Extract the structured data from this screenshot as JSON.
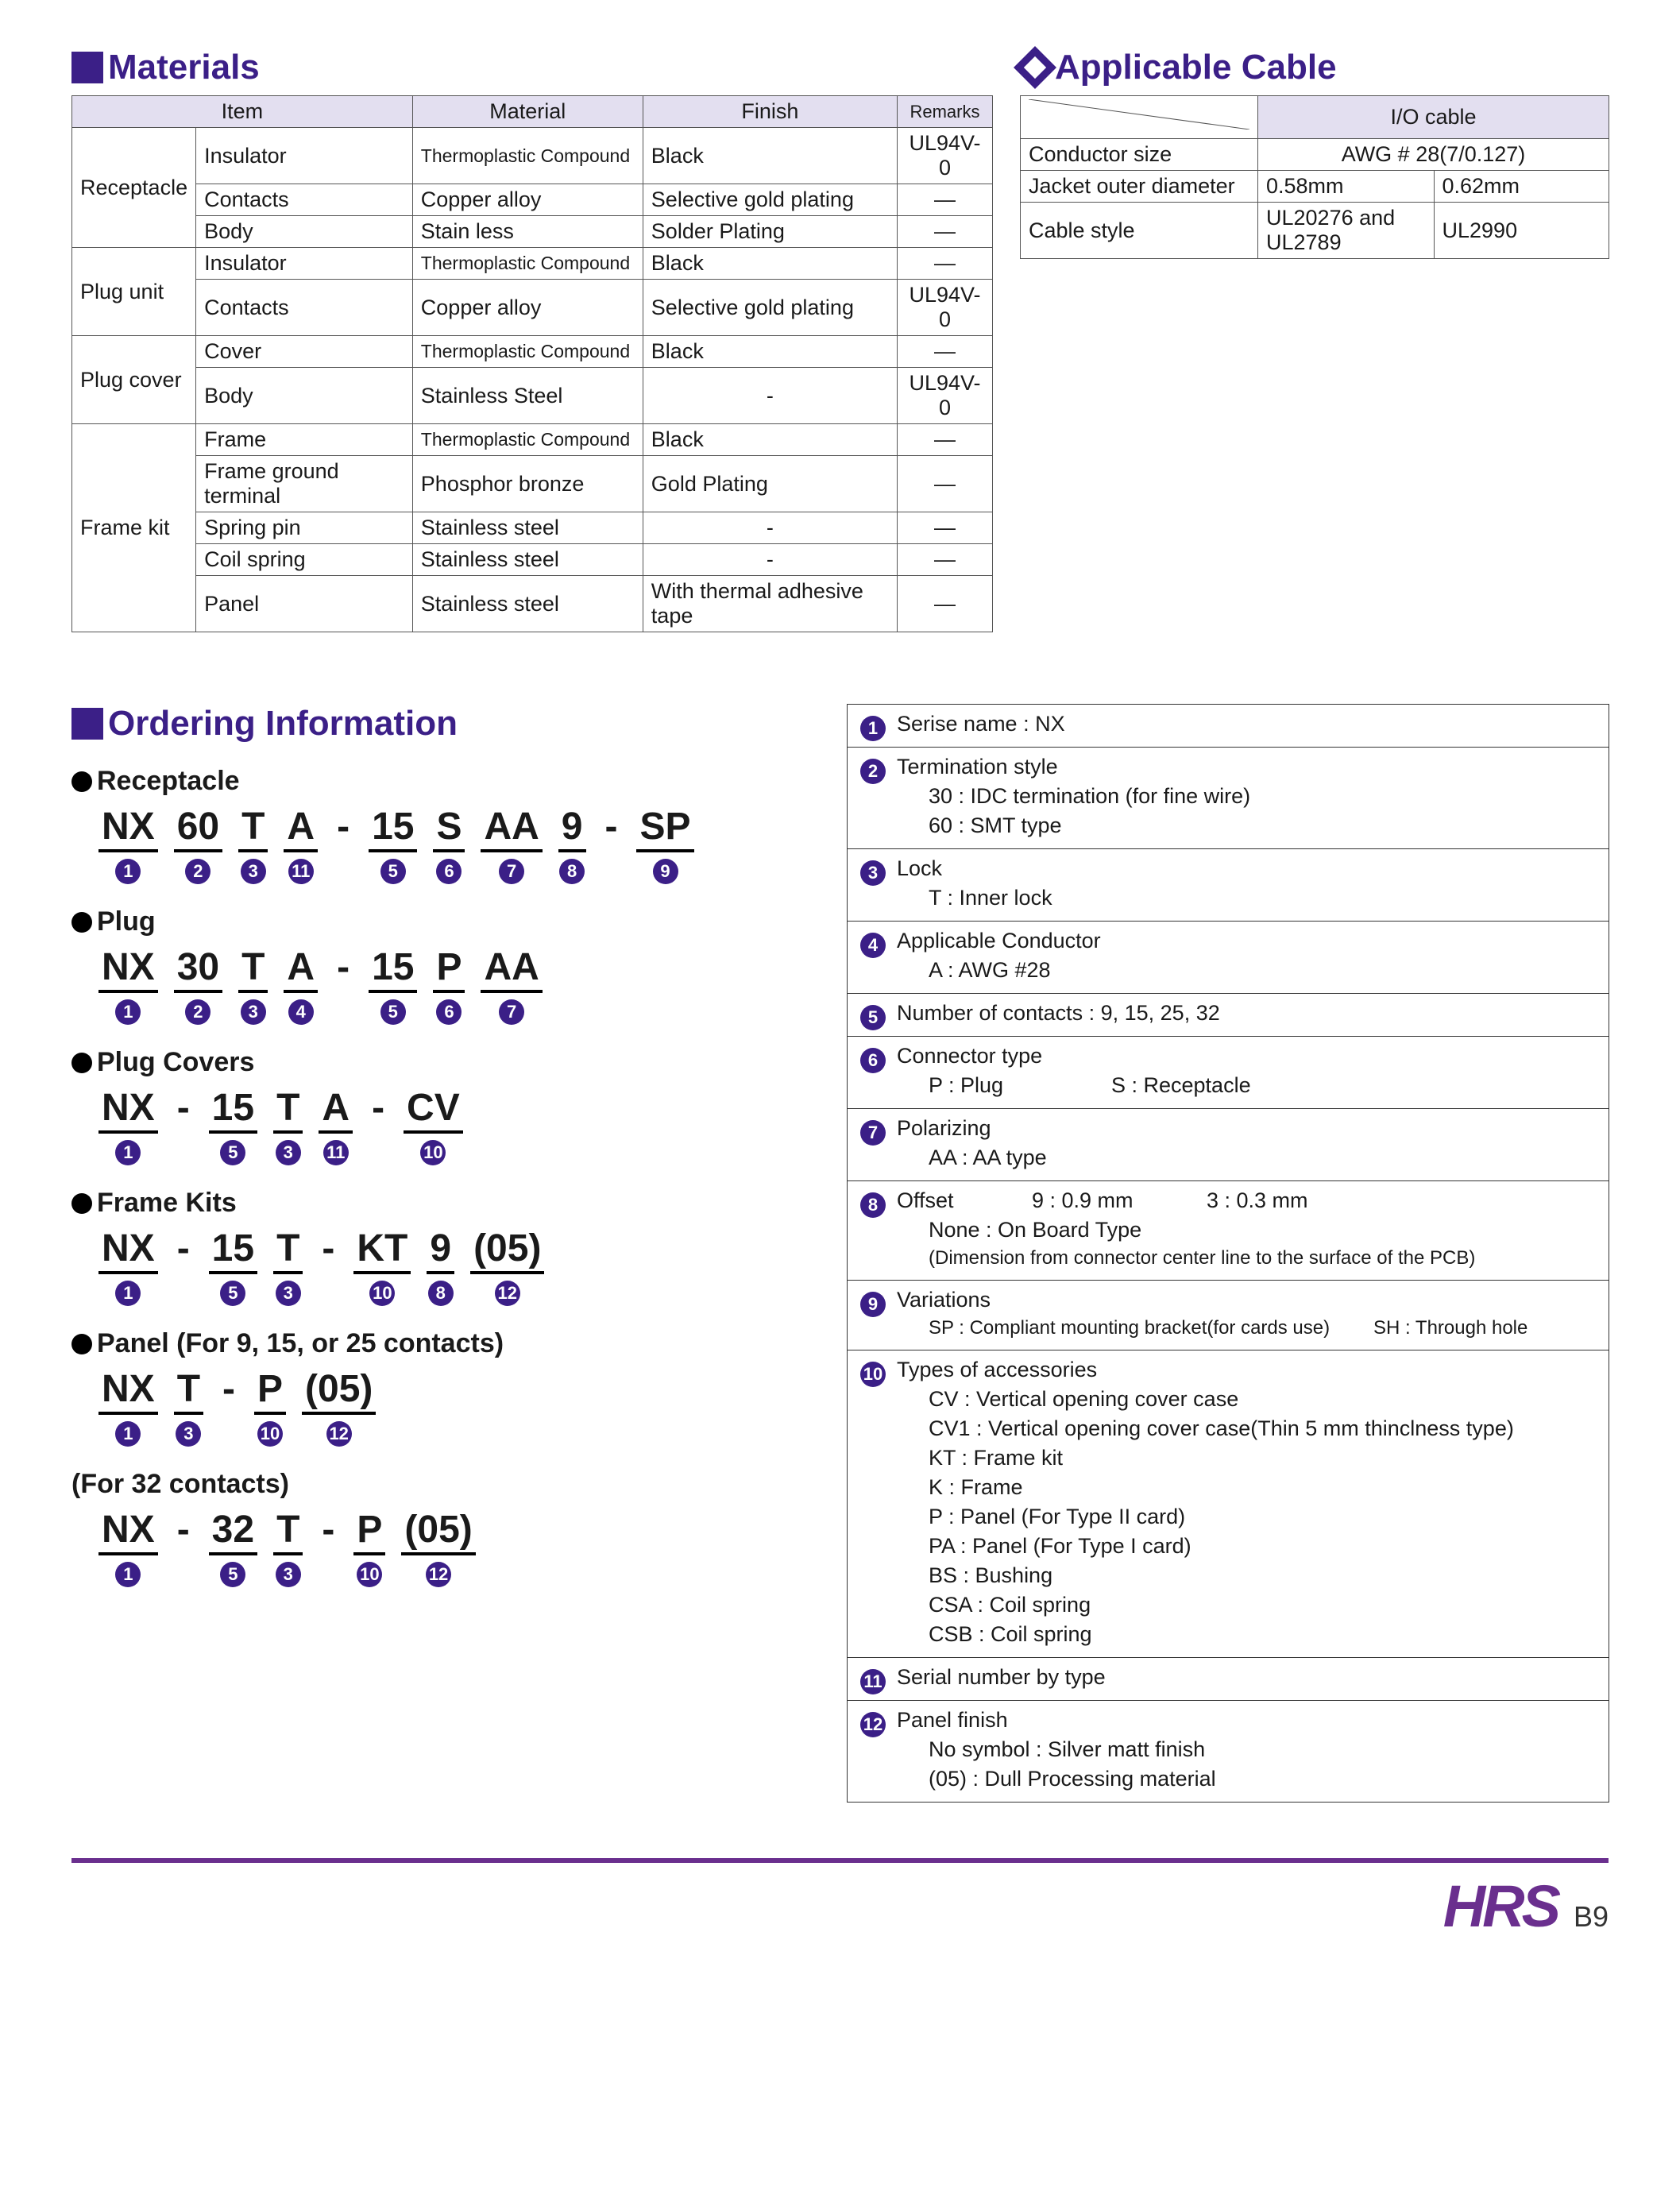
{
  "colors": {
    "accent": "#3b1f87",
    "border": "#555555",
    "header_bg": "#e3dff0",
    "footer_rule": "#6a2f8e",
    "logo": "#6a2f8e"
  },
  "sections": {
    "materials": {
      "title": "Materials"
    },
    "cable": {
      "title": "Applicable Cable"
    },
    "ordering": {
      "title": "Ordering Information"
    }
  },
  "materials_table": {
    "headers": [
      "Item",
      "Material",
      "Finish",
      "Remarks"
    ],
    "groups": [
      {
        "group": "Receptacle",
        "rows": [
          {
            "item": "Insulator",
            "material": "Thermoplastic Compound",
            "finish": "Black",
            "remarks": "UL94V-0"
          },
          {
            "item": "Contacts",
            "material": "Copper alloy",
            "finish": "Selective gold plating",
            "remarks": "—"
          },
          {
            "item": "Body",
            "material": "Stain less",
            "finish": "Solder Plating",
            "remarks": "—"
          }
        ]
      },
      {
        "group": "Plug unit",
        "rows": [
          {
            "item": "Insulator",
            "material": "Thermoplastic Compound",
            "finish": "Black",
            "remarks": "—"
          },
          {
            "item": "Contacts",
            "material": "Copper alloy",
            "finish": "Selective gold plating",
            "remarks": "UL94V-0"
          }
        ]
      },
      {
        "group": "Plug cover",
        "rows": [
          {
            "item": "Cover",
            "material": "Thermoplastic Compound",
            "finish": "Black",
            "remarks": "—"
          },
          {
            "item": "Body",
            "material": "Stainless Steel",
            "finish": "-",
            "remarks": "UL94V-0"
          }
        ]
      },
      {
        "group": "Frame kit",
        "rows": [
          {
            "item": "Frame",
            "material": "Thermoplastic Compound",
            "finish": "Black",
            "remarks": "—"
          },
          {
            "item": "Frame ground terminal",
            "material": "Phosphor bronze",
            "finish": "Gold Plating",
            "remarks": "—"
          },
          {
            "item": "Spring pin",
            "material": "Stainless steel",
            "finish": "-",
            "remarks": "—"
          },
          {
            "item": "Coil spring",
            "material": "Stainless steel",
            "finish": "-",
            "remarks": "—"
          },
          {
            "item": "Panel",
            "material": "Stainless steel",
            "finish": "With thermal adhesive tape",
            "remarks": "—"
          }
        ]
      }
    ]
  },
  "cable_table": {
    "header_main": "I/O cable",
    "rows": [
      {
        "label": "Conductor size",
        "val": "AWG # 28(7/0.127)",
        "colspan": 2
      },
      {
        "label": "Jacket outer diameter",
        "vals": [
          "0.58mm",
          "0.62mm"
        ]
      },
      {
        "label": "Cable style",
        "vals": [
          "UL20276 and UL2789",
          "UL2990"
        ]
      }
    ]
  },
  "ordering": {
    "subsections": [
      {
        "title": "Receptacle",
        "segs": [
          {
            "t": "NX",
            "n": 1
          },
          {
            "t": "60",
            "n": 2
          },
          {
            "t": "T",
            "n": 3
          },
          {
            "t": "A",
            "n": 11
          },
          {
            "t": "-",
            "n": null
          },
          {
            "t": "15",
            "n": 5
          },
          {
            "t": "S",
            "n": 6
          },
          {
            "t": "AA",
            "n": 7
          },
          {
            "t": "9",
            "n": 8
          },
          {
            "t": "-",
            "n": null
          },
          {
            "t": "SP",
            "n": 9
          }
        ]
      },
      {
        "title": "Plug",
        "segs": [
          {
            "t": "NX",
            "n": 1
          },
          {
            "t": "30",
            "n": 2
          },
          {
            "t": "T",
            "n": 3
          },
          {
            "t": "A",
            "n": 4
          },
          {
            "t": "-",
            "n": null
          },
          {
            "t": "15",
            "n": 5
          },
          {
            "t": "P",
            "n": 6
          },
          {
            "t": "AA",
            "n": 7
          }
        ]
      },
      {
        "title": "Plug Covers",
        "segs": [
          {
            "t": "NX",
            "n": 1
          },
          {
            "t": "-",
            "n": null
          },
          {
            "t": "15",
            "n": 5
          },
          {
            "t": "T",
            "n": 3
          },
          {
            "t": "A",
            "n": 11
          },
          {
            "t": "-",
            "n": null
          },
          {
            "t": "CV",
            "n": 10
          }
        ]
      },
      {
        "title": "Frame Kits",
        "segs": [
          {
            "t": "NX",
            "n": 1
          },
          {
            "t": "-",
            "n": null
          },
          {
            "t": "15",
            "n": 5
          },
          {
            "t": "T",
            "n": 3
          },
          {
            "t": "-",
            "n": null
          },
          {
            "t": "KT",
            "n": 10
          },
          {
            "t": "9",
            "n": 8
          },
          {
            "t": "(05)",
            "n": 12
          }
        ]
      },
      {
        "title": "Panel (For 9, 15, or 25 contacts)",
        "segs": [
          {
            "t": "NX",
            "n": 1
          },
          {
            "t": "T",
            "n": 3
          },
          {
            "t": "-",
            "n": null
          },
          {
            "t": "P",
            "n": 10
          },
          {
            "t": "(05)",
            "n": 12
          }
        ]
      },
      {
        "title_plain": "(For 32 contacts)",
        "segs": [
          {
            "t": "NX",
            "n": 1
          },
          {
            "t": "-",
            "n": null
          },
          {
            "t": "32",
            "n": 5
          },
          {
            "t": "T",
            "n": 3
          },
          {
            "t": "-",
            "n": null
          },
          {
            "t": "P",
            "n": 10
          },
          {
            "t": "(05)",
            "n": 12
          }
        ]
      }
    ]
  },
  "legend": [
    {
      "n": 1,
      "lines": [
        "Serise name : NX"
      ]
    },
    {
      "n": 2,
      "lines": [
        "Termination style"
      ],
      "subs": [
        "30 : IDC termination (for fine wire)",
        "60 : SMT type"
      ]
    },
    {
      "n": 3,
      "lines": [
        "Lock"
      ],
      "subs": [
        "T : Inner lock"
      ]
    },
    {
      "n": 4,
      "lines": [
        "Applicable Conductor"
      ],
      "subs": [
        "A : AWG  #28"
      ]
    },
    {
      "n": 5,
      "lines": [
        "Number of contacts : 9, 15, 25, 32"
      ]
    },
    {
      "n": 6,
      "lines": [
        "Connector type"
      ],
      "subs_inline": [
        [
          "P : Plug",
          "S : Receptacle"
        ]
      ]
    },
    {
      "n": 7,
      "lines": [
        "Polarizing"
      ],
      "subs": [
        "AA : AA  type"
      ]
    },
    {
      "n": 8,
      "lines_inline": [
        [
          "Offset",
          "9 : 0.9 mm",
          "3 : 0.3 mm"
        ]
      ],
      "subs": [
        "            None : On Board Type"
      ],
      "small": "(Dimension from connector center line to the surface of the PCB)"
    },
    {
      "n": 9,
      "lines": [
        "Variations"
      ],
      "small_inline": [
        [
          "SP : Compliant mounting bracket(for cards use)",
          "SH : Through hole"
        ]
      ]
    },
    {
      "n": 10,
      "lines": [
        "Types of accessories"
      ],
      "subs": [
        "CV : Vertical opening cover case",
        "CV1 : Vertical opening cover case(Thin 5 mm thinclness type)",
        "KT : Frame kit",
        "K : Frame",
        "P : Panel (For Type II card)",
        "PA : Panel (For Type I card)",
        "BS : Bushing",
        "CSA : Coil spring",
        "CSB : Coil spring"
      ]
    },
    {
      "n": 11,
      "lines": [
        "Serial number by type"
      ]
    },
    {
      "n": 12,
      "lines": [
        "Panel finish"
      ],
      "subs": [
        "No symbol : Silver matt finish",
        "(05) : Dull Processing material"
      ]
    }
  ],
  "footer": {
    "logo": "HRS",
    "page": "B9"
  }
}
